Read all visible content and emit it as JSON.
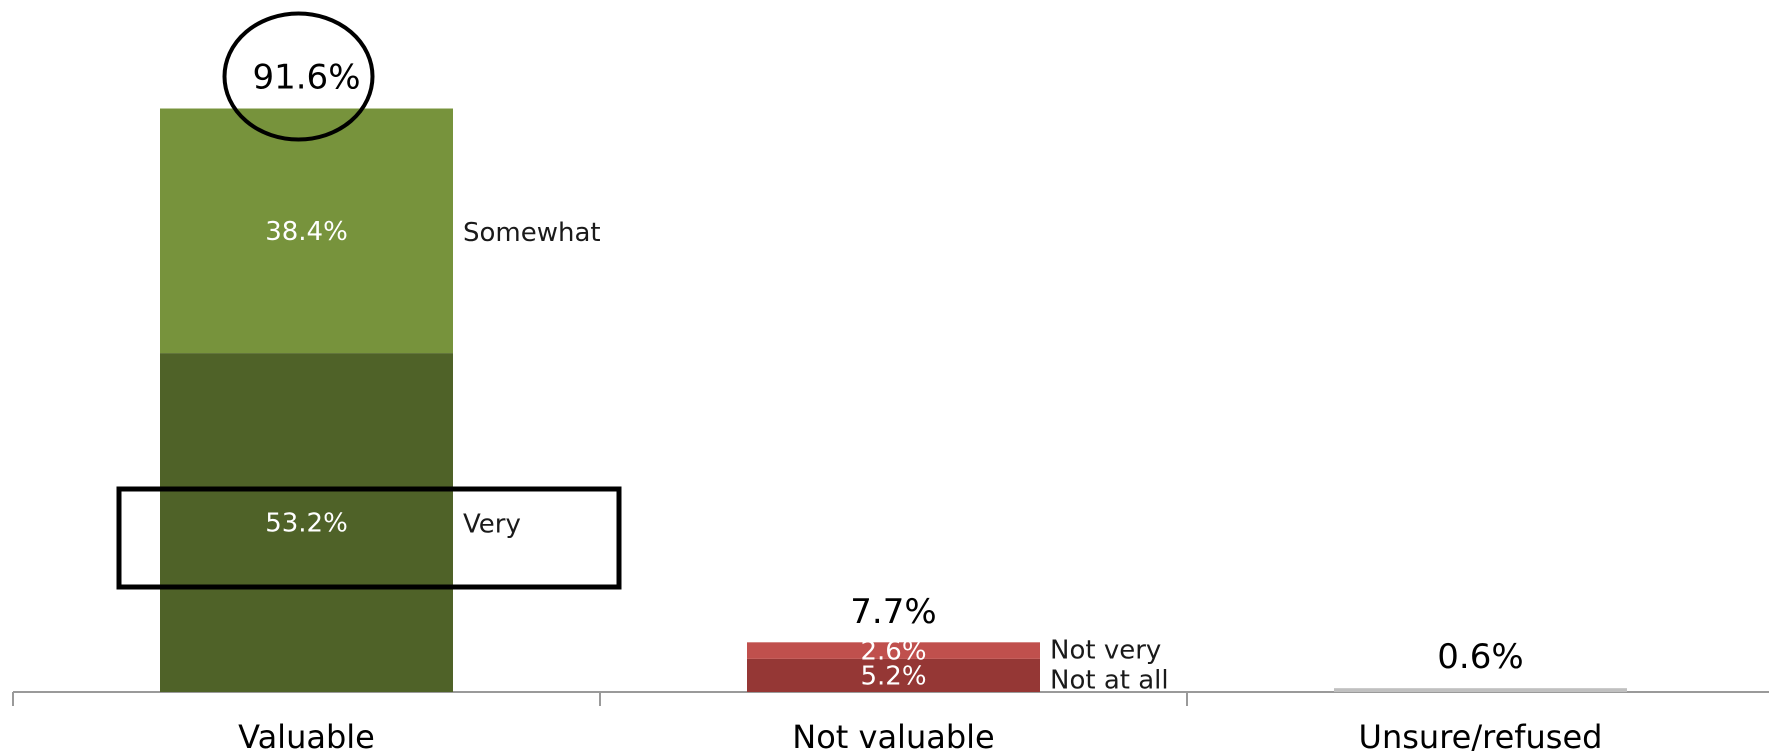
{
  "chart_data": {
    "type": "bar",
    "stacked": true,
    "categories": [
      "Valuable",
      "Not valuable",
      "Unsure/refused"
    ],
    "ylim": [
      0,
      100
    ],
    "grid": false,
    "legend": "none",
    "series": [
      {
        "name": "Very",
        "values": [
          53.2,
          null,
          null
        ],
        "labels": [
          "53.2%",
          "",
          ""
        ],
        "color": "#4f6228"
      },
      {
        "name": "Somewhat",
        "values": [
          38.4,
          null,
          null
        ],
        "labels": [
          "38.4%",
          "",
          ""
        ],
        "color": "#77933c"
      },
      {
        "name": "Not at all",
        "values": [
          null,
          5.2,
          null
        ],
        "labels": [
          "",
          "5.2%",
          ""
        ],
        "color": "#953735"
      },
      {
        "name": "Not very",
        "values": [
          null,
          2.6,
          null
        ],
        "labels": [
          "",
          "2.6%",
          ""
        ],
        "color": "#c0504d"
      },
      {
        "name": "",
        "values": [
          null,
          null,
          0.6
        ],
        "labels": [
          "",
          "",
          ""
        ],
        "color": "#c0c0c0"
      }
    ],
    "totals": [
      {
        "value": 91.6,
        "label": "91.6%"
      },
      {
        "value": 7.7,
        "label": "7.7%"
      },
      {
        "value": 0.6,
        "label": "0.6%"
      }
    ],
    "annotations": [
      {
        "type": "ellipse",
        "target": "total",
        "category": "Valuable"
      },
      {
        "type": "rectangle",
        "target": "segment",
        "category": "Valuable",
        "series": "Very"
      }
    ]
  }
}
